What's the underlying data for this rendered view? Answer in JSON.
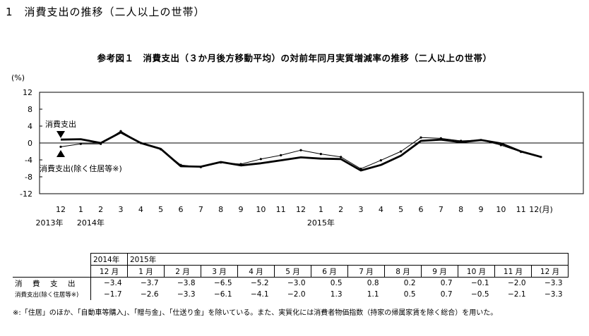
{
  "heading": "1　消費支出の推移（二人以上の世帯）",
  "chart_data": {
    "type": "line",
    "title": "参考図１　消費支出（３か月後方移動平均）の対前年同月実質増減率の推移（二人以上の世帯）",
    "ylabel": "(%)",
    "ylim": [
      -12,
      12
    ],
    "yticks": [
      "12",
      "8",
      "4",
      "0",
      "-4",
      "-8",
      "-12"
    ],
    "x_labels": [
      "12",
      "1",
      "2",
      "3",
      "4",
      "5",
      "6",
      "7",
      "8",
      "9",
      "10",
      "11",
      "12",
      "1",
      "2",
      "3",
      "4",
      "5",
      "6",
      "7",
      "8",
      "9",
      "10",
      "11",
      "12(月)"
    ],
    "year_labels": [
      "2013年",
      "2014年",
      "2015年"
    ],
    "series": [
      {
        "name": "消費支出",
        "values": [
          0.8,
          0.9,
          0.0,
          2.5,
          0.0,
          -1.4,
          -5.5,
          -5.6,
          -4.5,
          -5.3,
          -4.8,
          -4.1,
          -3.4,
          -3.7,
          -3.8,
          -6.5,
          -5.2,
          -3.0,
          0.5,
          0.8,
          0.2,
          0.7,
          -0.1,
          -2.0,
          -3.3
        ]
      },
      {
        "name": "消費支出(除く住居等※)",
        "values": [
          -0.9,
          -0.2,
          -0.2,
          2.8,
          0.0,
          -1.5,
          -5.2,
          -5.7,
          -4.6,
          -5.0,
          -3.8,
          -2.9,
          -1.7,
          -2.6,
          -3.3,
          -6.1,
          -4.1,
          -2.0,
          1.3,
          1.1,
          0.5,
          0.7,
          -0.5,
          -2.1,
          -3.3
        ]
      }
    ]
  },
  "table": {
    "year_headers": [
      "2014年",
      "2015年"
    ],
    "month_headers": [
      "12 月",
      "1 月",
      "2 月",
      "3 月",
      "4 月",
      "5 月",
      "6 月",
      "7 月",
      "8 月",
      "9 月",
      "10 月",
      "11 月",
      "12 月"
    ],
    "rows": [
      {
        "label": "消　費　支　出",
        "values": [
          "−3.4",
          "−3.7",
          "−3.8",
          "−6.5",
          "−5.2",
          "−3.0",
          "0.5",
          "0.8",
          "0.2",
          "0.7",
          "−0.1",
          "−2.0",
          "−3.3"
        ]
      },
      {
        "label": "消費支出(除く住居等※)",
        "values": [
          "−1.7",
          "−2.6",
          "−3.3",
          "−6.1",
          "−4.1",
          "−2.0",
          "1.3",
          "1.1",
          "0.5",
          "0.7",
          "−0.5",
          "−2.1",
          "−3.3"
        ]
      }
    ]
  },
  "footnote": "※:「住居」のほか、「自動車等購入」、「贈与金」、「仕送り金」を除いている。また、実質化には消費者物価指数（持家の帰属家賃を除く総合）を用いた。"
}
